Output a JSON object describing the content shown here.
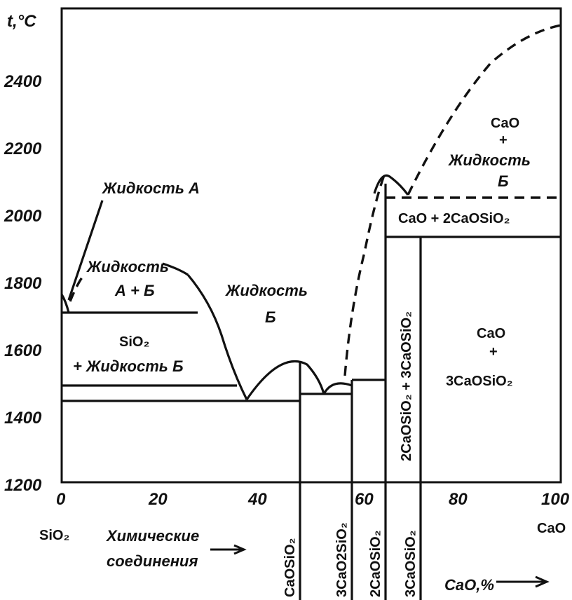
{
  "chart_data": {
    "type": "diagram",
    "ylabel": "t,°C",
    "yticks": [
      "2400",
      "2200",
      "2000",
      "1800",
      "1600",
      "1400",
      "1200"
    ],
    "xticks": [
      "0",
      "20",
      "40",
      "60",
      "80",
      "100"
    ],
    "ylim": [
      1200,
      2600
    ],
    "xlim": [
      0,
      100
    ],
    "left_component": "SiO₂",
    "right_component": "CaO",
    "x_axis_unit": "CaO,%",
    "compounds_caption": "Химические соединения",
    "regions": [
      {
        "name": "liquid-a",
        "text": "Жидкость А"
      },
      {
        "name": "liquid-a-b-1",
        "text": "Жидкость"
      },
      {
        "name": "liquid-a-b-2",
        "text": "А + Б"
      },
      {
        "name": "liquid-b-1",
        "text": "Жидкость"
      },
      {
        "name": "liquid-b-2",
        "text": "Б"
      },
      {
        "name": "sio2-liquid-1",
        "text": "SiO₂"
      },
      {
        "name": "sio2-liquid-2",
        "text": "+ Жидкость Б"
      },
      {
        "name": "cao-liquid-1",
        "text": "CaO"
      },
      {
        "name": "cao-liquid-2",
        "text": "+"
      },
      {
        "name": "cao-liquid-3",
        "text": "Жидкость"
      },
      {
        "name": "cao-liquid-4",
        "text": "Б"
      },
      {
        "name": "cao-2caosio2",
        "text": "CaO + 2CaOSiO₂"
      },
      {
        "name": "cao-3caosio2-1",
        "text": "CaO"
      },
      {
        "name": "cao-3caosio2-2",
        "text": "+"
      },
      {
        "name": "cao-3caosio2-3",
        "text": "3CaOSiO₂"
      },
      {
        "name": "2caosio2-3caosio2",
        "text": "2CaOSiO₂ + 3CaOSiO₂"
      }
    ],
    "compounds": [
      {
        "name": "CaOSiO₂",
        "cao_percent": 48
      },
      {
        "name": "3CaO2SiO₂",
        "cao_percent": 58
      },
      {
        "name": "2CaOSiO₂",
        "cao_percent": 65
      },
      {
        "name": "3CaOSiO₂",
        "cao_percent": 74
      }
    ]
  }
}
